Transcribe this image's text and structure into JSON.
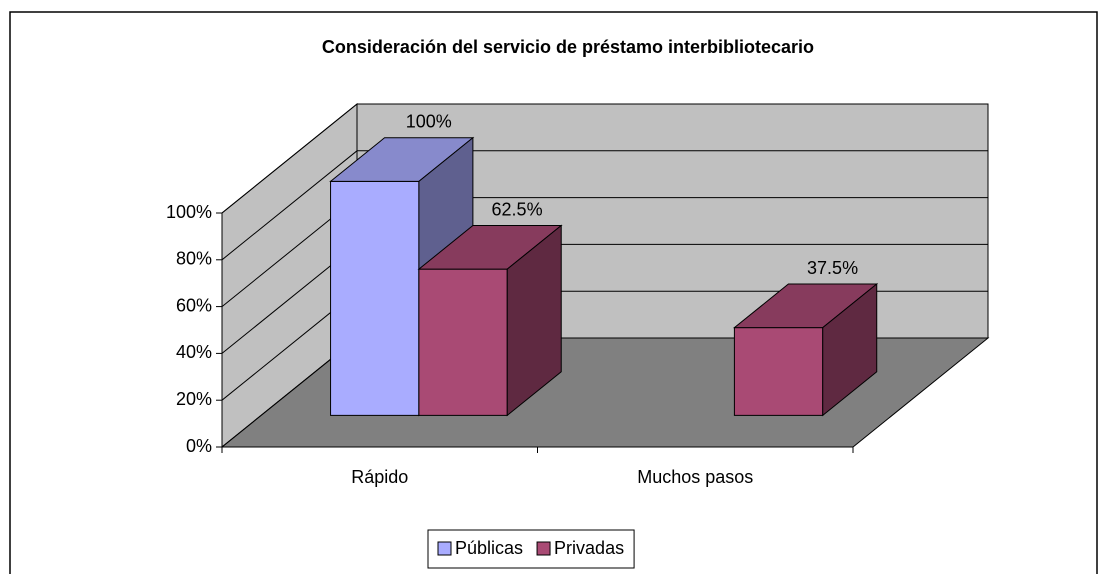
{
  "chart_data": {
    "type": "bar3d",
    "title": "Consideración del servicio de préstamo interbibliotecario",
    "categories": [
      "Rápido",
      "Muchos pasos"
    ],
    "series": [
      {
        "name": "Públicas",
        "color": "#a9acff",
        "values": [
          100,
          null
        ],
        "value_labels": [
          "100%",
          null
        ]
      },
      {
        "name": "Privadas",
        "color": "#a94a74",
        "values": [
          62.5,
          37.5
        ],
        "value_labels": [
          "62.5%",
          "37.5%"
        ]
      }
    ],
    "ylim": [
      0,
      100
    ],
    "yticks": [
      {
        "value": 0,
        "label": "0%"
      },
      {
        "value": 20,
        "label": "20%"
      },
      {
        "value": 40,
        "label": "40%"
      },
      {
        "value": 60,
        "label": "60%"
      },
      {
        "value": 80,
        "label": "80%"
      },
      {
        "value": 100,
        "label": "100%"
      }
    ],
    "grid": true,
    "legend": "bottom"
  }
}
